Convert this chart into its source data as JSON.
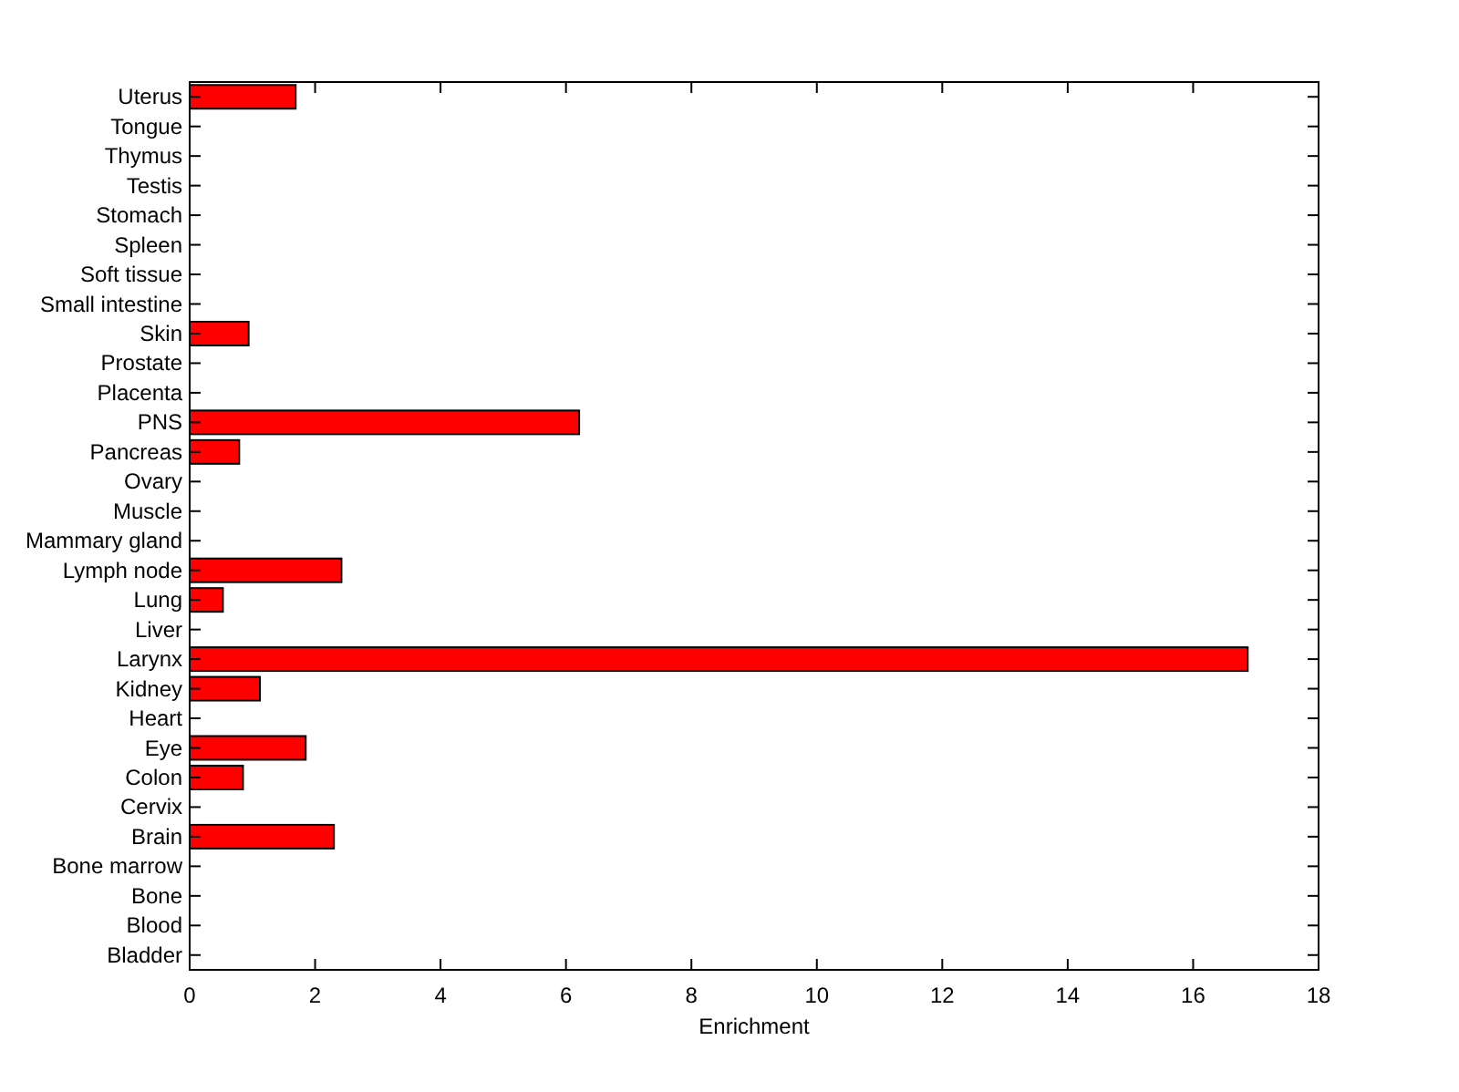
{
  "chart_data": {
    "type": "bar",
    "orientation": "horizontal",
    "xlabel": "Enrichment",
    "categories": [
      "Uterus",
      "Tongue",
      "Thymus",
      "Testis",
      "Stomach",
      "Spleen",
      "Soft tissue",
      "Small intestine",
      "Skin",
      "Prostate",
      "Placenta",
      "PNS",
      "Pancreas",
      "Ovary",
      "Muscle",
      "Mammary gland",
      "Lymph node",
      "Lung",
      "Liver",
      "Larynx",
      "Kidney",
      "Heart",
      "Eye",
      "Colon",
      "Cervix",
      "Brain",
      "Bone marrow",
      "Bone",
      "Blood",
      "Bladder"
    ],
    "values": [
      1.69,
      0,
      0,
      0,
      0,
      0,
      0,
      0,
      0.94,
      0,
      0,
      6.21,
      0.79,
      0,
      0,
      0,
      2.42,
      0.53,
      0,
      16.87,
      1.12,
      0,
      1.85,
      0.85,
      0,
      2.3,
      0,
      0,
      0,
      0
    ],
    "color": "#ff0000",
    "xlim": [
      0,
      18
    ],
    "xticks": [
      0,
      2,
      4,
      6,
      8,
      10,
      12,
      14,
      16,
      18
    ],
    "grid": false
  }
}
